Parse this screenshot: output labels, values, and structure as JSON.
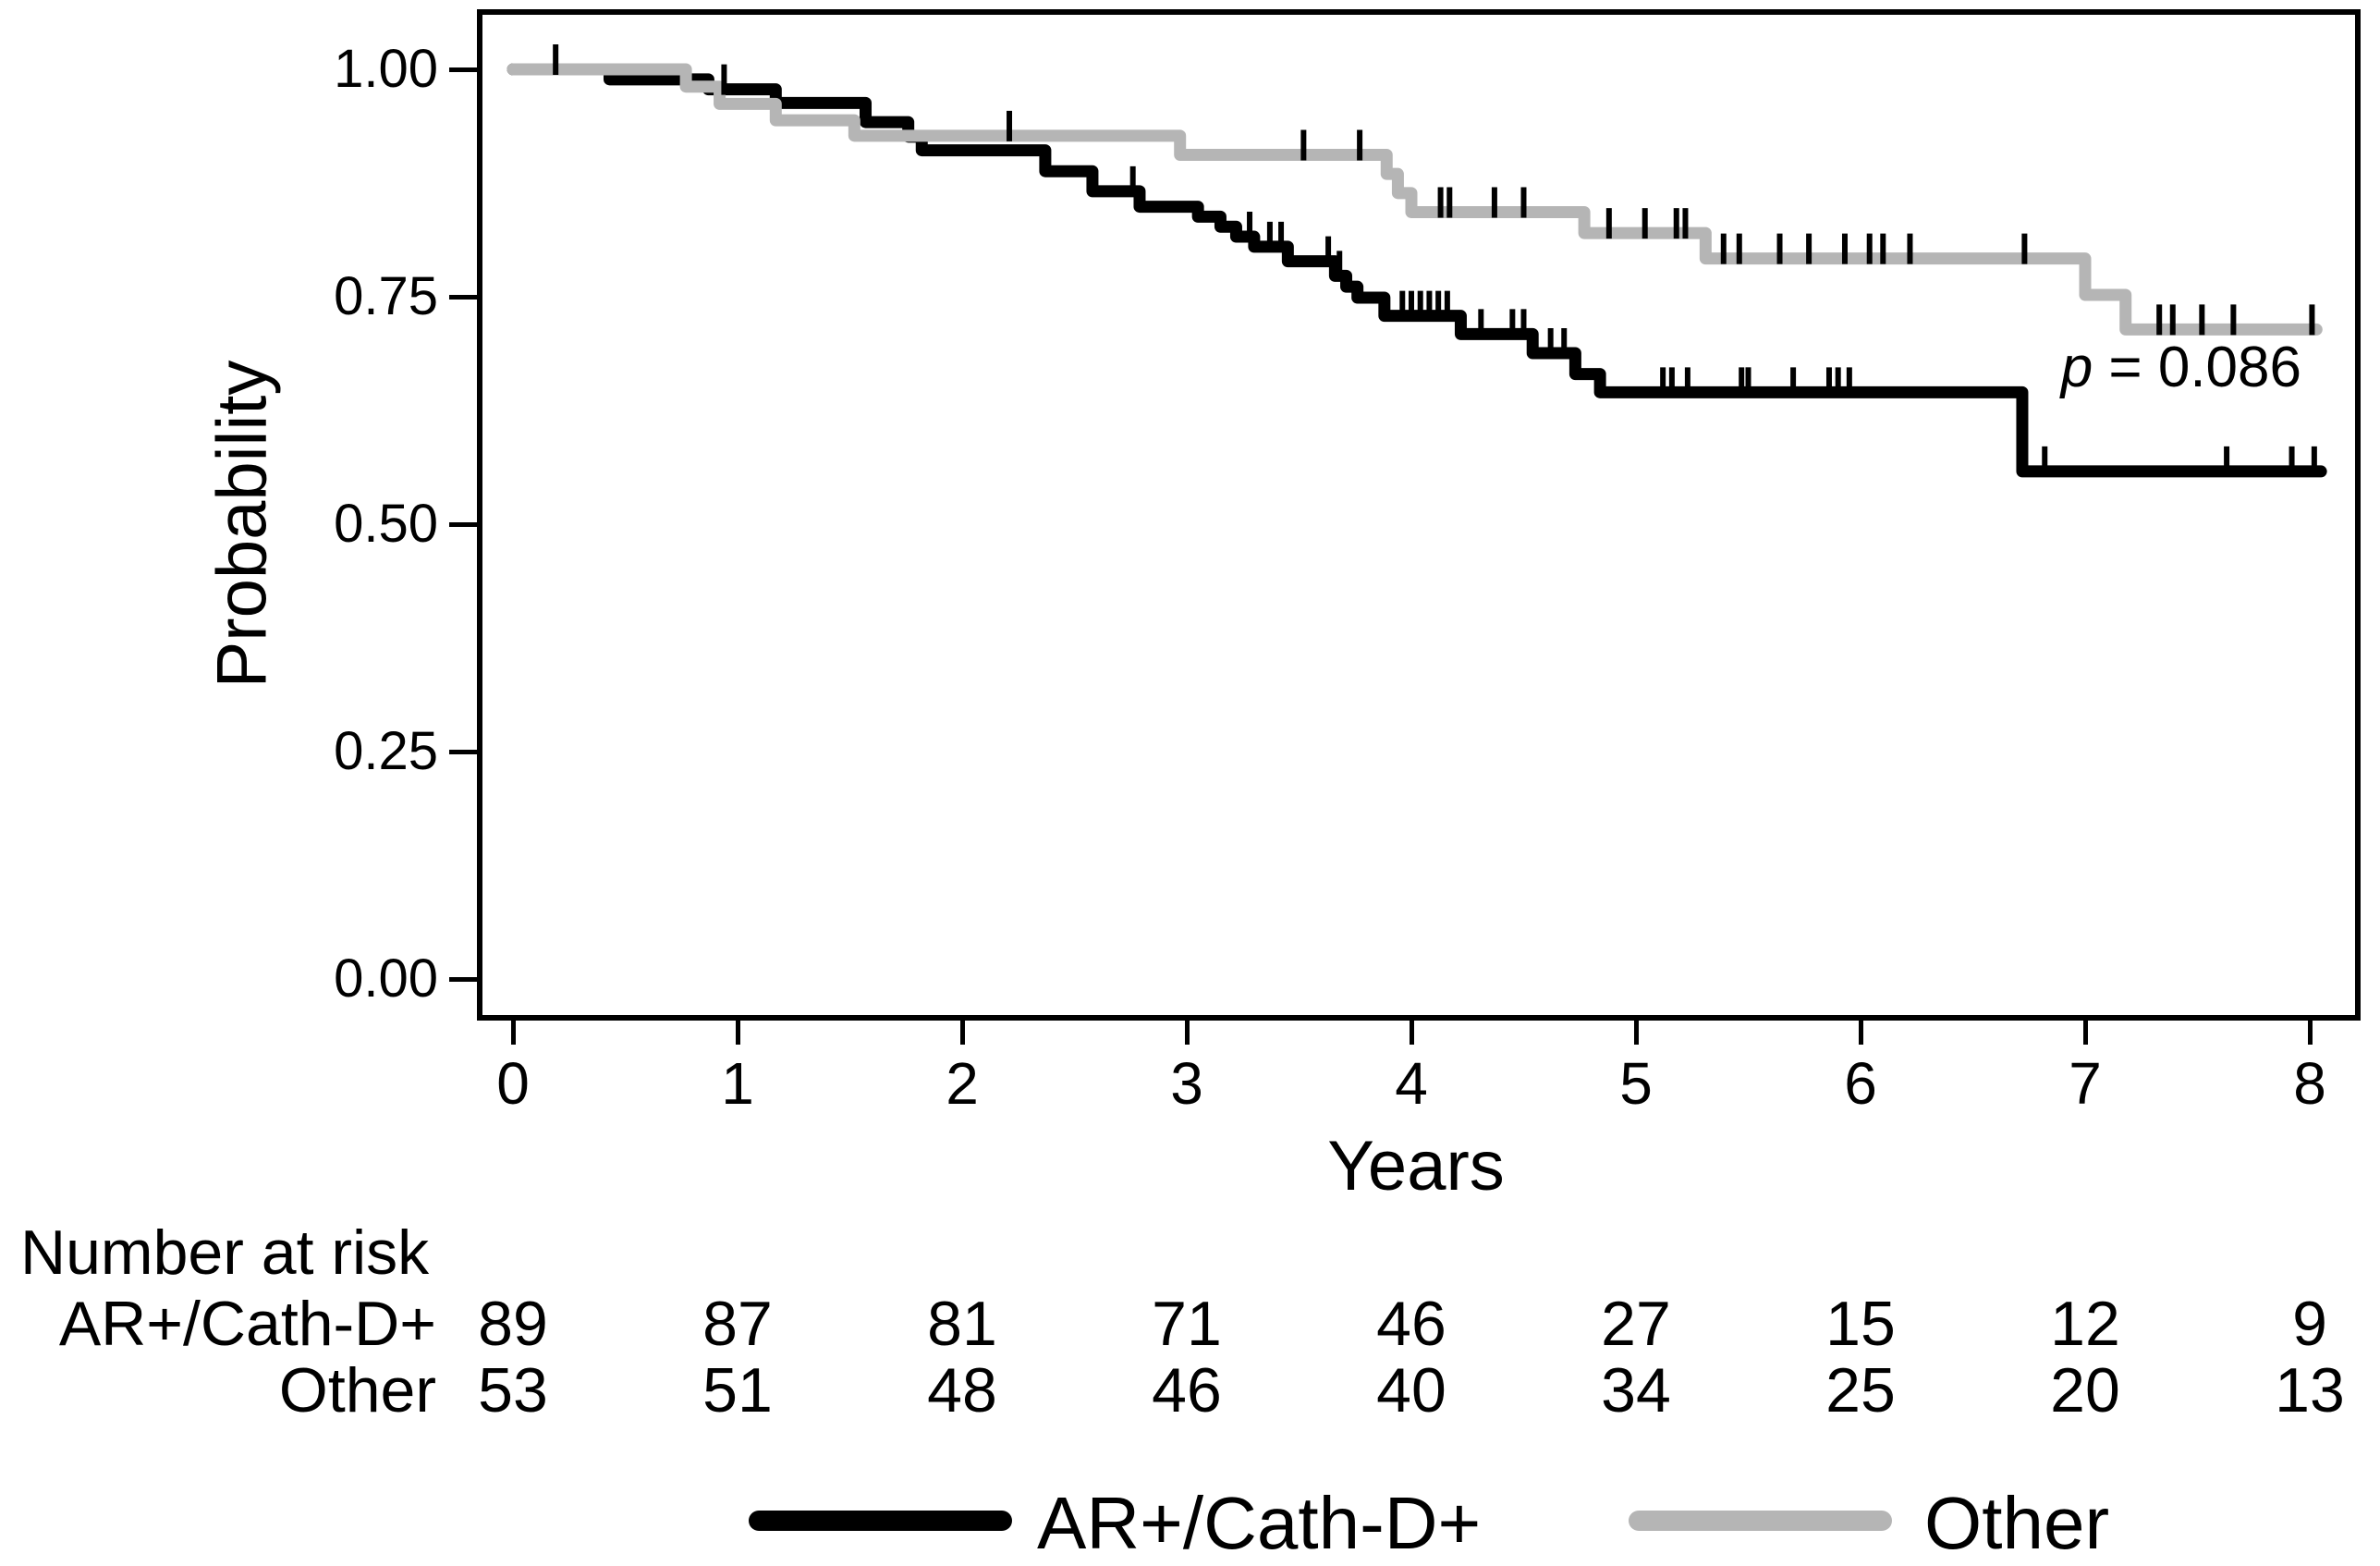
{
  "chart_data": {
    "type": "line",
    "subtype": "kaplan-meier-step",
    "title": "",
    "xlabel": "Years",
    "ylabel": "Probability",
    "xlim": [
      0,
      8
    ],
    "ylim": [
      0,
      1
    ],
    "grid": true,
    "xticks": [
      "0",
      "1",
      "2",
      "3",
      "4",
      "5",
      "6",
      "7",
      "8"
    ],
    "yticks": [
      "0.00",
      "0.25",
      "0.50",
      "0.75",
      "1.00"
    ],
    "annotation": {
      "p_italic": "p",
      "p_rest": " = 0.086"
    },
    "series": [
      {
        "name": "AR+/Cath-D+",
        "color": "#000000",
        "steps": [
          [
            0,
            1.0
          ],
          [
            0.43,
            0.989
          ],
          [
            0.87,
            0.978
          ],
          [
            1.17,
            0.963
          ],
          [
            1.57,
            0.942
          ],
          [
            1.76,
            0.926
          ],
          [
            1.82,
            0.911
          ],
          [
            2.37,
            0.888
          ],
          [
            2.58,
            0.866
          ],
          [
            2.79,
            0.849
          ],
          [
            3.05,
            0.838
          ],
          [
            3.15,
            0.827
          ],
          [
            3.22,
            0.816
          ],
          [
            3.3,
            0.805
          ],
          [
            3.45,
            0.789
          ],
          [
            3.66,
            0.773
          ],
          [
            3.71,
            0.761
          ],
          [
            3.76,
            0.749
          ],
          [
            3.88,
            0.729
          ],
          [
            4.22,
            0.709
          ],
          [
            4.54,
            0.688
          ],
          [
            4.73,
            0.665
          ],
          [
            4.84,
            0.645
          ],
          [
            6.72,
            0.558
          ],
          [
            8.05,
            0.558
          ]
        ],
        "censors": [
          0.19,
          0.94,
          2.76,
          3.28,
          3.37,
          3.42,
          3.63,
          3.68,
          3.96,
          4.0,
          4.04,
          4.08,
          4.12,
          4.16,
          4.31,
          4.45,
          4.5,
          4.62,
          4.68,
          5.12,
          5.16,
          5.23,
          5.47,
          5.5,
          5.7,
          5.86,
          5.9,
          5.95,
          6.82,
          7.63,
          7.92,
          8.02
        ]
      },
      {
        "name": "Other",
        "color": "#b5b5b5",
        "steps": [
          [
            0,
            1.0
          ],
          [
            0.77,
            0.981
          ],
          [
            0.92,
            0.962
          ],
          [
            1.17,
            0.944
          ],
          [
            1.52,
            0.927
          ],
          [
            2.97,
            0.906
          ],
          [
            3.89,
            0.885
          ],
          [
            3.94,
            0.864
          ],
          [
            4.0,
            0.843
          ],
          [
            4.77,
            0.82
          ],
          [
            5.31,
            0.792
          ],
          [
            7.0,
            0.752
          ],
          [
            7.18,
            0.714
          ],
          [
            8.03,
            0.714
          ]
        ],
        "censors": [
          2.21,
          3.52,
          3.77,
          4.13,
          4.17,
          4.37,
          4.5,
          4.88,
          5.04,
          5.18,
          5.22,
          5.39,
          5.46,
          5.64,
          5.77,
          5.93,
          6.04,
          6.1,
          6.22,
          6.73,
          7.33,
          7.39,
          7.52,
          7.66,
          8.01
        ]
      }
    ],
    "risk_table": {
      "title": "Number at risk",
      "times": [
        0,
        1,
        2,
        3,
        4,
        5,
        6,
        7,
        8
      ],
      "rows": [
        {
          "label": "AR+/Cath-D+",
          "values": [
            89,
            87,
            81,
            71,
            46,
            27,
            15,
            12,
            9
          ]
        },
        {
          "label": "Other",
          "values": [
            53,
            51,
            48,
            46,
            40,
            34,
            25,
            20,
            13
          ]
        }
      ]
    },
    "legend": [
      {
        "label": "AR+/Cath-D+",
        "color": "#000000"
      },
      {
        "label": "Other",
        "color": "#b5b5b5"
      }
    ],
    "colors": {
      "grid": "#ebebeb",
      "axis": "#000000",
      "censor_tick": "#000000"
    }
  }
}
